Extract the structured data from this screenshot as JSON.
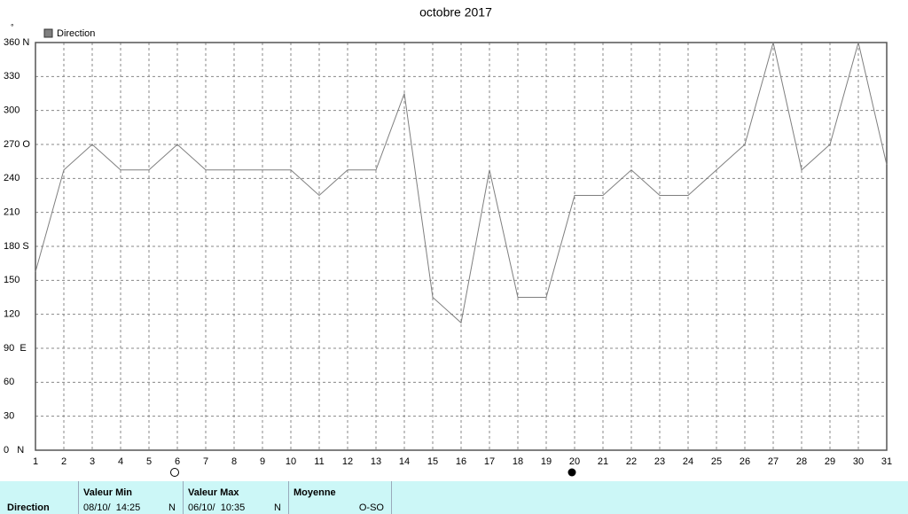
{
  "chart_data": {
    "type": "line",
    "title": "octobre 2017",
    "y_unit": "°",
    "x": [
      1,
      2,
      3,
      4,
      5,
      6,
      7,
      8,
      9,
      10,
      11,
      12,
      13,
      14,
      15,
      16,
      17,
      18,
      19,
      20,
      21,
      22,
      23,
      24,
      25,
      26,
      27,
      28,
      29,
      30,
      31
    ],
    "series": [
      {
        "name": "Direction",
        "color": "#7f7f7f",
        "values": [
          157.5,
          247.5,
          270,
          247.5,
          247.5,
          270,
          247.5,
          247.5,
          247.5,
          247.5,
          225,
          247.5,
          247.5,
          315,
          135,
          112.5,
          247.5,
          135,
          135,
          225,
          225,
          247.5,
          225,
          225,
          247.5,
          270,
          360,
          247.5,
          270,
          360,
          252
        ]
      }
    ],
    "xlim": [
      1,
      31
    ],
    "xticks": [
      1,
      2,
      3,
      4,
      5,
      6,
      7,
      8,
      9,
      10,
      11,
      12,
      13,
      14,
      15,
      16,
      17,
      18,
      19,
      20,
      21,
      22,
      23,
      24,
      25,
      26,
      27,
      28,
      29,
      30,
      31
    ],
    "ylim": [
      0,
      360
    ],
    "yticks": [
      {
        "value": 0,
        "label": "0   N"
      },
      30,
      60,
      {
        "value": 90,
        "label": "90  E"
      },
      120,
      150,
      {
        "value": 180,
        "label": "180 S"
      },
      210,
      240,
      {
        "value": 270,
        "label": "270 O"
      },
      300,
      330,
      {
        "value": 360,
        "label": "360 N"
      }
    ],
    "grid": true
  },
  "summary": {
    "row_label": "Direction",
    "columns": [
      {
        "header": "Valeur Min",
        "date": "08/10/  14:25",
        "value": "N"
      },
      {
        "header": "Valeur Max",
        "date": "06/10/  10:35",
        "value": "N"
      },
      {
        "header": "Moyenne",
        "value": "O-SO"
      }
    ]
  }
}
